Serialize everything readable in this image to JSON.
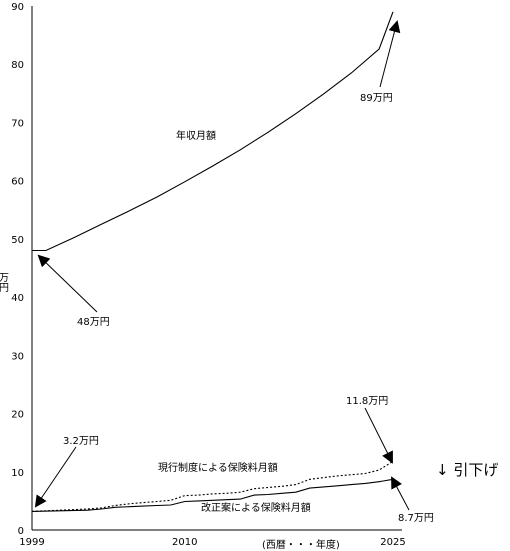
{
  "chart_data": {
    "type": "line",
    "title": "",
    "xlabel": "(西暦・・・年度)",
    "ylabel": "万円",
    "xlim": [
      1999,
      2025
    ],
    "ylim": [
      0,
      90
    ],
    "x_ticks": [
      1999,
      2010,
      2025
    ],
    "y_ticks": [
      0,
      10,
      20,
      30,
      40,
      50,
      60,
      70,
      80,
      90
    ],
    "series": [
      {
        "name": "年収月額",
        "style": "solid",
        "x": [
          1999,
          2000,
          2002,
          2004,
          2006,
          2008,
          2010,
          2012,
          2014,
          2016,
          2018,
          2020,
          2022,
          2024,
          2025
        ],
        "values": [
          48,
          48,
          50.2,
          52.5,
          54.8,
          57.2,
          59.8,
          62.5,
          65.3,
          68.3,
          71.5,
          74.9,
          78.5,
          82.6,
          89
        ]
      },
      {
        "name": "現行制度による保険料月額",
        "style": "dotted",
        "x": [
          1999,
          2001,
          2003,
          2004,
          2005,
          2006,
          2007,
          2008,
          2009,
          2010,
          2011,
          2012,
          2013,
          2014,
          2015,
          2016,
          2017,
          2018,
          2019,
          2020,
          2021,
          2022,
          2023,
          2024,
          2025
        ],
        "values": [
          3.2,
          3.4,
          3.6,
          3.8,
          4.2,
          4.5,
          4.7,
          4.9,
          5.1,
          5.9,
          6.0,
          6.2,
          6.3,
          6.5,
          7.1,
          7.3,
          7.5,
          7.8,
          8.7,
          9.0,
          9.3,
          9.5,
          9.7,
          10.3,
          11.8
        ]
      },
      {
        "name": "改正案による保険料月額",
        "style": "solid",
        "x": [
          1999,
          2001,
          2003,
          2004,
          2005,
          2006,
          2007,
          2008,
          2009,
          2010,
          2011,
          2012,
          2013,
          2014,
          2015,
          2016,
          2017,
          2018,
          2019,
          2020,
          2021,
          2022,
          2023,
          2024,
          2025
        ],
        "values": [
          3.2,
          3.3,
          3.4,
          3.6,
          3.9,
          4.0,
          4.1,
          4.2,
          4.3,
          4.9,
          5.0,
          5.1,
          5.2,
          5.3,
          6.0,
          6.1,
          6.3,
          6.5,
          7.2,
          7.4,
          7.6,
          7.8,
          8.0,
          8.3,
          8.7
        ]
      }
    ],
    "annotations": [
      {
        "text": "48万円",
        "x": 1999,
        "y": 48
      },
      {
        "text": "89万円",
        "x": 2025,
        "y": 89
      },
      {
        "text": "3.2万円",
        "x": 1999,
        "y": 3.2
      },
      {
        "text": "11.8万円",
        "x": 2025,
        "y": 11.8
      },
      {
        "text": "8.7万円",
        "x": 2025,
        "y": 8.7
      },
      {
        "text": "↓ 引下げ"
      }
    ],
    "grid": false,
    "legend": "none (inline series labels)"
  }
}
